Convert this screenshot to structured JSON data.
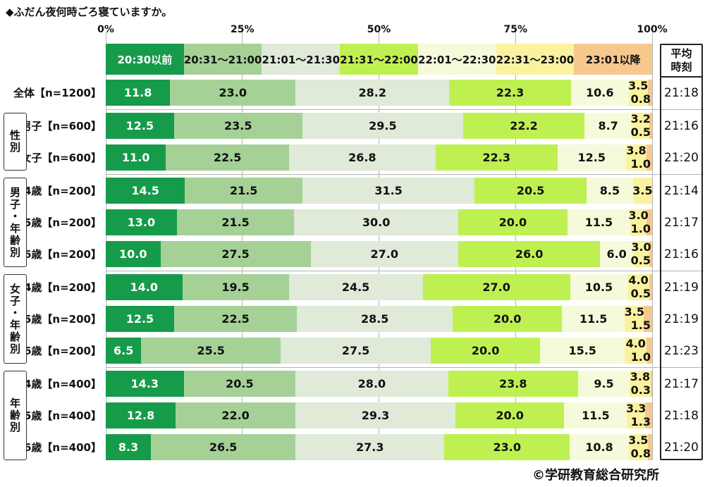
{
  "title": "◆ふだん夜何時ごろ寝ていますか。",
  "footer": "©学研教育総合研究所",
  "avg_header": "平均時刻",
  "axis_ticks": [
    "0%",
    "25%",
    "50%",
    "75%",
    "100%"
  ],
  "legend": [
    {
      "label": "20:30以前",
      "color": "#169b4a",
      "text": "#ffffff"
    },
    {
      "label": "20:31～21:00",
      "color": "#a5d197",
      "text": "#111111"
    },
    {
      "label": "21:01～21:30",
      "color": "#dfead8",
      "text": "#111111"
    },
    {
      "label": "21:31～22:00",
      "color": "#bff052",
      "text": "#111111"
    },
    {
      "label": "22:01～22:30",
      "color": "#f5fbda",
      "text": "#111111"
    },
    {
      "label": "22:31～23:00",
      "color": "#fbf2a0",
      "text": "#111111"
    },
    {
      "label": "23:01以降",
      "color": "#f6c88d",
      "text": "#111111"
    }
  ],
  "chart_data": {
    "type": "bar",
    "orientation": "horizontal-stacked",
    "xlim": [
      0,
      100
    ],
    "grid": "vertical, 25% steps",
    "legend_position": "top",
    "categories": [
      "20:30以前",
      "20:31～21:00",
      "21:01～21:30",
      "21:31～22:00",
      "22:01～22:30",
      "22:31～23:00",
      "23:01以降"
    ],
    "groups": [
      {
        "name": "",
        "rows": [
          {
            "label": "全体【n=1200】",
            "values": [
              11.8,
              23.0,
              28.2,
              22.3,
              10.6,
              3.5,
              0.8
            ],
            "avg": "21:18"
          }
        ]
      },
      {
        "name": "性別",
        "rows": [
          {
            "label": "男子【n=600】",
            "values": [
              12.5,
              23.5,
              29.5,
              22.2,
              8.7,
              3.2,
              0.5
            ],
            "avg": "21:16"
          },
          {
            "label": "女子【n=600】",
            "values": [
              11.0,
              22.5,
              26.8,
              22.3,
              12.5,
              3.8,
              1.0
            ],
            "avg": "21:20"
          }
        ]
      },
      {
        "name": "男子・年齢別",
        "rows": [
          {
            "label": "4歳【n=200】",
            "values": [
              14.5,
              21.5,
              31.5,
              20.5,
              8.5,
              3.5,
              0.0
            ],
            "avg": "21:14"
          },
          {
            "label": "5歳【n=200】",
            "values": [
              13.0,
              21.5,
              30.0,
              20.0,
              11.5,
              3.0,
              1.0
            ],
            "avg": "21:17"
          },
          {
            "label": "6歳【n=200】",
            "values": [
              10.0,
              27.5,
              27.0,
              26.0,
              6.0,
              3.0,
              0.5
            ],
            "avg": "21:16"
          }
        ]
      },
      {
        "name": "女子・年齢別",
        "rows": [
          {
            "label": "4歳【n=200】",
            "values": [
              14.0,
              19.5,
              24.5,
              27.0,
              10.5,
              4.0,
              0.5
            ],
            "avg": "21:19"
          },
          {
            "label": "5歳【n=200】",
            "values": [
              12.5,
              22.5,
              28.5,
              20.0,
              11.5,
              3.5,
              1.5
            ],
            "avg": "21:19"
          },
          {
            "label": "6歳【n=200】",
            "values": [
              6.5,
              25.5,
              27.5,
              20.0,
              15.5,
              4.0,
              1.0
            ],
            "avg": "21:23"
          }
        ]
      },
      {
        "name": "年齢別",
        "rows": [
          {
            "label": "4歳【n=400】",
            "values": [
              14.3,
              20.5,
              28.0,
              23.8,
              9.5,
              3.8,
              0.3
            ],
            "avg": "21:17"
          },
          {
            "label": "5歳【n=400】",
            "values": [
              12.8,
              22.0,
              29.3,
              20.0,
              11.5,
              3.3,
              1.3
            ],
            "avg": "21:18"
          },
          {
            "label": "6歳【n=400】",
            "values": [
              8.3,
              26.5,
              27.3,
              23.0,
              10.8,
              3.5,
              0.8
            ],
            "avg": "21:20"
          }
        ]
      }
    ]
  }
}
